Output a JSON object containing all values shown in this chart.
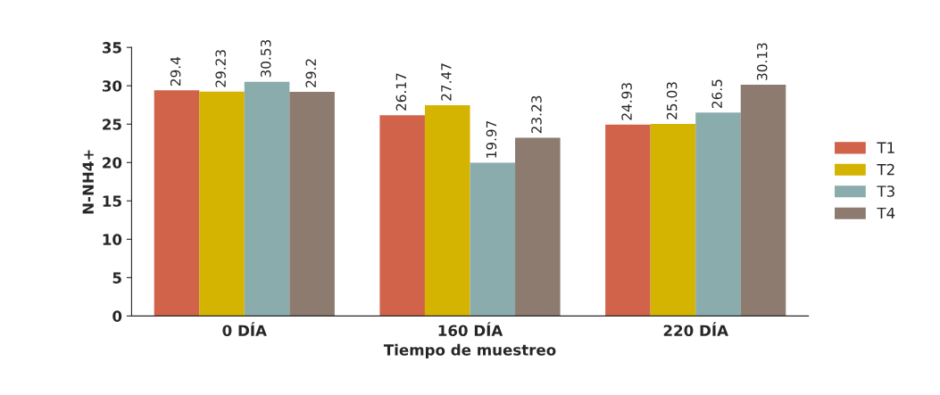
{
  "chart_data": {
    "type": "bar",
    "xlabel": "Tiempo de muestreo",
    "ylabel": "N-NH4+",
    "categories": [
      "0 DÍA",
      "160 DÍA",
      "220 DÍA"
    ],
    "series": [
      {
        "name": "T1",
        "color": "#d0634a",
        "values": [
          29.4,
          26.17,
          24.93
        ]
      },
      {
        "name": "T2",
        "color": "#d4b400",
        "values": [
          29.23,
          27.47,
          25.03
        ]
      },
      {
        "name": "T3",
        "color": "#8aacac",
        "values": [
          30.53,
          19.97,
          26.5
        ]
      },
      {
        "name": "T4",
        "color": "#8c7b6e",
        "values": [
          29.2,
          23.23,
          30.13
        ]
      }
    ],
    "ylim": [
      0,
      35
    ],
    "yticks": [
      0,
      5,
      10,
      15,
      20,
      25,
      30,
      35
    ],
    "data_labels": true,
    "grid": false,
    "legend": "right"
  }
}
